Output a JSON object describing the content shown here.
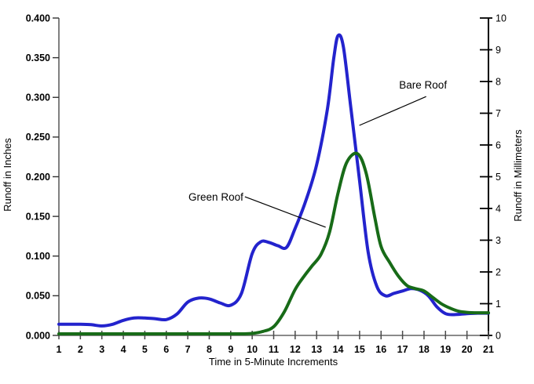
{
  "chart_data": {
    "type": "line",
    "title": "",
    "xlabel": "Time in 5-Minute Increments",
    "ylabel_left": "Runoff in Inches",
    "ylabel_right": "Runoff in Millimeters",
    "xlim": [
      1,
      21
    ],
    "ylim_left": [
      0.0,
      0.4
    ],
    "ylim_right": [
      0,
      10
    ],
    "grid": false,
    "legend": "annotations-with-leader-lines",
    "x_ticks": [
      1,
      2,
      3,
      4,
      5,
      6,
      7,
      8,
      9,
      10,
      11,
      12,
      13,
      14,
      15,
      16,
      17,
      18,
      19,
      20,
      21
    ],
    "y_left_ticks": [
      0.0,
      0.05,
      0.1,
      0.15,
      0.2,
      0.25,
      0.3,
      0.35,
      0.4
    ],
    "y_right_ticks": [
      0,
      1,
      2,
      3,
      4,
      5,
      6,
      7,
      8,
      9,
      10
    ],
    "axis_colors": {
      "left": "#4a4a4a",
      "right": "#000000",
      "bottom": "#8a8a8a"
    },
    "series": [
      {
        "name": "Bare Roof",
        "color": "#2323CD",
        "points": [
          [
            1,
            0.014
          ],
          [
            1.5,
            0.014
          ],
          [
            2,
            0.014
          ],
          [
            2.5,
            0.0135
          ],
          [
            3,
            0.012
          ],
          [
            3.5,
            0.014
          ],
          [
            4,
            0.019
          ],
          [
            4.5,
            0.022
          ],
          [
            5,
            0.022
          ],
          [
            5.5,
            0.021
          ],
          [
            6,
            0.02
          ],
          [
            6.5,
            0.027
          ],
          [
            7,
            0.042
          ],
          [
            7.5,
            0.047
          ],
          [
            8,
            0.046
          ],
          [
            8.5,
            0.041
          ],
          [
            9,
            0.038
          ],
          [
            9.5,
            0.053
          ],
          [
            10,
            0.103
          ],
          [
            10.4,
            0.118
          ],
          [
            10.8,
            0.117
          ],
          [
            11.2,
            0.113
          ],
          [
            11.6,
            0.111
          ],
          [
            12,
            0.135
          ],
          [
            12.5,
            0.17
          ],
          [
            13,
            0.215
          ],
          [
            13.5,
            0.285
          ],
          [
            13.8,
            0.35
          ],
          [
            14,
            0.378
          ],
          [
            14.25,
            0.363
          ],
          [
            14.6,
            0.285
          ],
          [
            15,
            0.195
          ],
          [
            15.4,
            0.105
          ],
          [
            15.8,
            0.062
          ],
          [
            16.2,
            0.05
          ],
          [
            16.6,
            0.053
          ],
          [
            17,
            0.056
          ],
          [
            17.4,
            0.059
          ],
          [
            17.8,
            0.057
          ],
          [
            18.2,
            0.05
          ],
          [
            18.6,
            0.036
          ],
          [
            19,
            0.0275
          ],
          [
            19.4,
            0.0262
          ],
          [
            20,
            0.0275
          ],
          [
            20.5,
            0.028
          ],
          [
            21,
            0.028
          ]
        ]
      },
      {
        "name": "Green Roof",
        "color": "#186B18",
        "points": [
          [
            1,
            0.002
          ],
          [
            2,
            0.002
          ],
          [
            3,
            0.002
          ],
          [
            4,
            0.002
          ],
          [
            5,
            0.002
          ],
          [
            6,
            0.002
          ],
          [
            7,
            0.002
          ],
          [
            8,
            0.002
          ],
          [
            9,
            0.002
          ],
          [
            9.5,
            0.002
          ],
          [
            10,
            0.0025
          ],
          [
            10.5,
            0.005
          ],
          [
            11,
            0.011
          ],
          [
            11.5,
            0.03
          ],
          [
            12,
            0.058
          ],
          [
            12.4,
            0.074
          ],
          [
            12.8,
            0.088
          ],
          [
            13.2,
            0.102
          ],
          [
            13.6,
            0.13
          ],
          [
            14,
            0.18
          ],
          [
            14.4,
            0.218
          ],
          [
            14.9,
            0.229
          ],
          [
            15.3,
            0.205
          ],
          [
            15.7,
            0.15
          ],
          [
            16,
            0.112
          ],
          [
            16.4,
            0.092
          ],
          [
            16.8,
            0.075
          ],
          [
            17.2,
            0.063
          ],
          [
            17.6,
            0.059
          ],
          [
            18,
            0.056
          ],
          [
            18.4,
            0.048
          ],
          [
            18.8,
            0.04
          ],
          [
            19.2,
            0.0345
          ],
          [
            19.6,
            0.0305
          ],
          [
            20,
            0.029
          ],
          [
            20.5,
            0.0285
          ],
          [
            21,
            0.0285
          ]
        ]
      }
    ],
    "annotations": [
      {
        "text": "Bare Roof",
        "label_x": 18.1,
        "label_y": 0.301,
        "target_x": 14.99,
        "target_y": 0.2647,
        "text_anchor": "middle",
        "text_dx": -4,
        "text_dy": -10
      },
      {
        "text": "Green Roof",
        "label_x": 9.66,
        "label_y": 0.1748,
        "target_x": 13.42,
        "target_y": 0.1363,
        "text_anchor": "end",
        "text_dx": -2,
        "text_dy": 5
      }
    ]
  }
}
